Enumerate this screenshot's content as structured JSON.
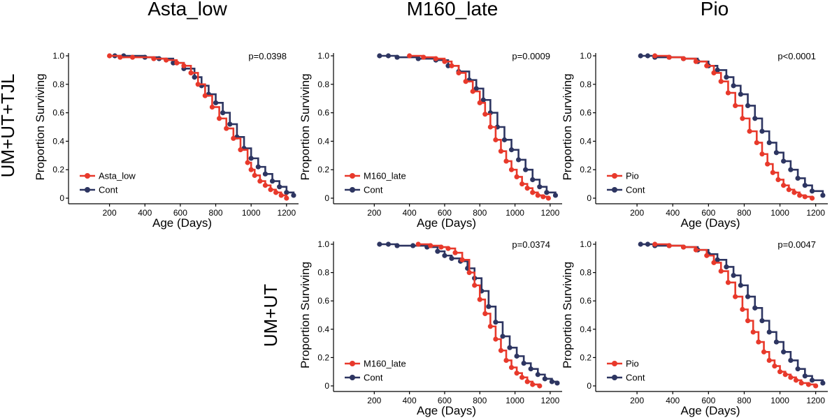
{
  "figure": {
    "column_titles": [
      "Asta_low",
      "M160_late",
      "Pio"
    ],
    "row_titles": [
      "UM+UT+TJL",
      "UM+UT"
    ],
    "colors": {
      "treatment": "#e8392b",
      "control": "#2d3561"
    }
  },
  "chart_data": [
    {
      "type": "line",
      "id": "r0c0",
      "xlabel": "Age (Days)",
      "ylabel": "Proportion Surviving",
      "xticks": [
        200,
        400,
        600,
        800,
        1000,
        1200
      ],
      "yticks": [
        0,
        0.2,
        0.4,
        0.6,
        0.8,
        1.0
      ],
      "ytick_labels": [
        "0",
        "0.2",
        "0.4",
        "0.6",
        "0.8",
        "1.0"
      ],
      "xlim": [
        0,
        1260
      ],
      "ylim": [
        0,
        1.0
      ],
      "annotation": "p=0.0398",
      "series": [
        {
          "name": "Asta_low",
          "color": "#e8392b",
          "x": [
            200,
            260,
            330,
            450,
            520,
            580,
            620,
            660,
            700,
            740,
            780,
            820,
            860,
            900,
            940,
            980,
            1000,
            1020,
            1050,
            1080,
            1110,
            1140,
            1170,
            1200
          ],
          "y": [
            1.0,
            0.99,
            0.99,
            0.98,
            0.97,
            0.95,
            0.93,
            0.88,
            0.8,
            0.72,
            0.64,
            0.56,
            0.49,
            0.42,
            0.34,
            0.25,
            0.2,
            0.16,
            0.12,
            0.09,
            0.06,
            0.04,
            0.02,
            0.0
          ]
        },
        {
          "name": "Cont",
          "color": "#2d3561",
          "x": [
            230,
            280,
            400,
            480,
            560,
            620,
            680,
            720,
            760,
            800,
            840,
            880,
            920,
            960,
            1000,
            1040,
            1080,
            1120,
            1160,
            1200,
            1240
          ],
          "y": [
            1.0,
            1.0,
            0.99,
            0.98,
            0.95,
            0.91,
            0.85,
            0.79,
            0.73,
            0.67,
            0.6,
            0.52,
            0.43,
            0.35,
            0.28,
            0.22,
            0.17,
            0.12,
            0.08,
            0.04,
            0.02
          ]
        }
      ]
    },
    {
      "type": "line",
      "id": "r0c1",
      "xlabel": "Age (Days)",
      "ylabel": "Proportion Surviving",
      "xticks": [
        200,
        400,
        600,
        800,
        1000,
        1200
      ],
      "yticks": [
        0,
        0.2,
        0.4,
        0.6,
        0.8,
        1.0
      ],
      "ytick_labels": [
        "0",
        "0.2",
        "0.4",
        "0.6",
        "0.8",
        "1.0"
      ],
      "xlim": [
        0,
        1260
      ],
      "ylim": [
        0,
        1.0
      ],
      "annotation": "p=0.0009",
      "series": [
        {
          "name": "M160_late",
          "color": "#e8392b",
          "x": [
            400,
            480,
            550,
            600,
            640,
            680,
            720,
            760,
            800,
            830,
            860,
            890,
            920,
            950,
            980,
            1010,
            1040,
            1070,
            1100,
            1130,
            1160,
            1190
          ],
          "y": [
            1.0,
            0.99,
            0.98,
            0.96,
            0.93,
            0.88,
            0.82,
            0.75,
            0.67,
            0.59,
            0.5,
            0.41,
            0.33,
            0.26,
            0.2,
            0.15,
            0.1,
            0.07,
            0.04,
            0.02,
            0.01,
            0.0
          ]
        },
        {
          "name": "Cont",
          "color": "#2d3561",
          "x": [
            230,
            280,
            330,
            450,
            550,
            620,
            680,
            740,
            780,
            820,
            860,
            900,
            940,
            980,
            1020,
            1060,
            1100,
            1140,
            1180,
            1230
          ],
          "y": [
            1.0,
            1.0,
            0.99,
            0.98,
            0.97,
            0.93,
            0.89,
            0.83,
            0.77,
            0.69,
            0.6,
            0.5,
            0.41,
            0.34,
            0.27,
            0.2,
            0.13,
            0.08,
            0.04,
            0.02
          ]
        }
      ]
    },
    {
      "type": "line",
      "id": "r0c2",
      "xlabel": "Age (Days)",
      "ylabel": "Proportion Surviving",
      "xticks": [
        200,
        400,
        600,
        800,
        1000,
        1200
      ],
      "yticks": [
        0,
        0.2,
        0.4,
        0.6,
        0.8,
        1.0
      ],
      "ytick_labels": [
        "0",
        "0.2",
        "0.4",
        "0.6",
        "0.8",
        "1.0"
      ],
      "xlim": [
        0,
        1260
      ],
      "ylim": [
        0,
        1.0
      ],
      "annotation": "p<0.0001",
      "series": [
        {
          "name": "Pio",
          "color": "#e8392b",
          "x": [
            300,
            380,
            460,
            530,
            590,
            630,
            670,
            710,
            750,
            790,
            830,
            870,
            900,
            930,
            960,
            990,
            1020,
            1050,
            1080,
            1110,
            1140,
            1180
          ],
          "y": [
            1.0,
            0.99,
            0.98,
            0.96,
            0.93,
            0.88,
            0.82,
            0.74,
            0.65,
            0.56,
            0.47,
            0.39,
            0.31,
            0.24,
            0.18,
            0.13,
            0.09,
            0.06,
            0.04,
            0.02,
            0.01,
            0.0
          ]
        },
        {
          "name": "Cont",
          "color": "#2d3561",
          "x": [
            220,
            260,
            300,
            380,
            460,
            540,
            600,
            650,
            700,
            740,
            780,
            820,
            860,
            900,
            940,
            980,
            1020,
            1060,
            1100,
            1140,
            1180,
            1240
          ],
          "y": [
            1.0,
            1.0,
            0.99,
            0.99,
            0.98,
            0.96,
            0.93,
            0.9,
            0.85,
            0.79,
            0.73,
            0.65,
            0.56,
            0.47,
            0.39,
            0.32,
            0.26,
            0.2,
            0.14,
            0.09,
            0.05,
            0.02
          ]
        }
      ]
    },
    {
      "type": "line",
      "id": "r1c1",
      "xlabel": "Age (Days)",
      "ylabel": "Proportion Surviving",
      "xticks": [
        200,
        400,
        600,
        800,
        1000,
        1200
      ],
      "yticks": [
        0,
        0.2,
        0.4,
        0.6,
        0.8,
        1.0
      ],
      "ytick_labels": [
        "0",
        "0.2",
        "0.4",
        "0.6",
        "0.8",
        "1.0"
      ],
      "xlim": [
        0,
        1260
      ],
      "ylim": [
        0,
        1.0
      ],
      "annotation": "p=0.0374",
      "series": [
        {
          "name": "M160_late",
          "color": "#e8392b",
          "x": [
            450,
            520,
            580,
            620,
            660,
            700,
            740,
            770,
            800,
            830,
            860,
            890,
            920,
            950,
            980,
            1010,
            1040,
            1070,
            1100,
            1140
          ],
          "y": [
            1.0,
            0.99,
            0.98,
            0.97,
            0.94,
            0.89,
            0.8,
            0.71,
            0.61,
            0.51,
            0.42,
            0.33,
            0.25,
            0.18,
            0.13,
            0.09,
            0.06,
            0.03,
            0.01,
            0.0
          ]
        },
        {
          "name": "Cont",
          "color": "#2d3561",
          "x": [
            230,
            280,
            330,
            420,
            500,
            560,
            600,
            640,
            690,
            730,
            770,
            810,
            850,
            890,
            930,
            970,
            1010,
            1050,
            1090,
            1130,
            1170,
            1210,
            1240
          ],
          "y": [
            1.0,
            1.0,
            0.99,
            0.99,
            0.98,
            0.95,
            0.92,
            0.9,
            0.88,
            0.83,
            0.76,
            0.67,
            0.56,
            0.45,
            0.35,
            0.27,
            0.21,
            0.16,
            0.12,
            0.08,
            0.05,
            0.03,
            0.02
          ]
        }
      ]
    },
    {
      "type": "line",
      "id": "r1c2",
      "xlabel": "Age (Days)",
      "ylabel": "Proportion Surviving",
      "xticks": [
        200,
        400,
        600,
        800,
        1000,
        1200
      ],
      "yticks": [
        0,
        0.2,
        0.4,
        0.6,
        0.8,
        1.0
      ],
      "ytick_labels": [
        "0",
        "0.2",
        "0.4",
        "0.6",
        "0.8",
        "1.0"
      ],
      "xlim": [
        0,
        1260
      ],
      "ylim": [
        0,
        1.0
      ],
      "annotation": "p=0.0047",
      "series": [
        {
          "name": "Pio",
          "color": "#e8392b",
          "x": [
            300,
            380,
            460,
            530,
            590,
            630,
            670,
            710,
            750,
            790,
            820,
            850,
            880,
            910,
            940,
            970,
            1000,
            1030,
            1060,
            1090,
            1120,
            1160,
            1200
          ],
          "y": [
            1.0,
            0.99,
            0.98,
            0.96,
            0.92,
            0.87,
            0.81,
            0.73,
            0.63,
            0.54,
            0.46,
            0.38,
            0.31,
            0.24,
            0.18,
            0.14,
            0.1,
            0.08,
            0.06,
            0.04,
            0.02,
            0.01,
            0.0
          ]
        },
        {
          "name": "Cont",
          "color": "#2d3561",
          "x": [
            220,
            260,
            300,
            380,
            460,
            540,
            600,
            650,
            700,
            740,
            780,
            820,
            860,
            900,
            940,
            980,
            1020,
            1060,
            1100,
            1140,
            1180,
            1240
          ],
          "y": [
            1.0,
            1.0,
            0.99,
            0.99,
            0.98,
            0.96,
            0.93,
            0.89,
            0.84,
            0.78,
            0.71,
            0.63,
            0.55,
            0.46,
            0.38,
            0.31,
            0.24,
            0.18,
            0.12,
            0.07,
            0.04,
            0.02
          ]
        }
      ]
    }
  ]
}
